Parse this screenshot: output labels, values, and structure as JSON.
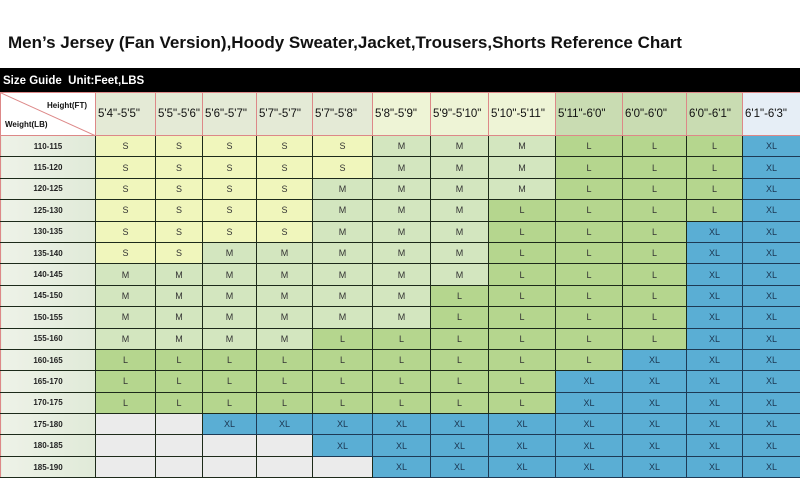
{
  "title": "Men’s Jersey (Fan Version),Hoody Sweater,Jacket,Trousers,Shorts Reference Chart",
  "guide_label": "Size Guide  Unit:Feet,LBS",
  "corner": {
    "height_label": "Height(FT)",
    "weight_label": "Weight(LB)"
  },
  "heights": [
    "5'4\"-5'5\"",
    "5'5\"-5'6\"",
    "5'6\"-5'7\"",
    "5'7\"-5'7\"",
    "5'7\"-5'8\"",
    "5'8\"-5'9\"",
    "5'9\"-5'10\"",
    "5'10\"-5'11\"",
    "5'11\"-6'0\"",
    "6'0\"-6'0\"",
    "6'0\"-6'1\"",
    "6'1\"-6'3\""
  ],
  "header_colors": [
    "#e4ead6",
    "#e4ead6",
    "#e4ead6",
    "#e4ead6",
    "#e4ead6",
    "#eef4d6",
    "#eef4d6",
    "#eef4d6",
    "#c9dcb2",
    "#c9dcb2",
    "#c9dcb2",
    "#e6eef6"
  ],
  "size_colors": {
    "S": "#f0f6bc",
    "M": "#d3e6bf",
    "L": "#b5d68e",
    "XL": "#5aaed4",
    "": "#ebebeb"
  },
  "rows": [
    {
      "weight": "110-115",
      "sizes": [
        "S",
        "S",
        "S",
        "S",
        "S",
        "M",
        "M",
        "M",
        "L",
        "L",
        "L",
        "XL"
      ]
    },
    {
      "weight": "115-120",
      "sizes": [
        "S",
        "S",
        "S",
        "S",
        "S",
        "M",
        "M",
        "M",
        "L",
        "L",
        "L",
        "XL"
      ]
    },
    {
      "weight": "120-125",
      "sizes": [
        "S",
        "S",
        "S",
        "S",
        "M",
        "M",
        "M",
        "M",
        "L",
        "L",
        "L",
        "XL"
      ]
    },
    {
      "weight": "125-130",
      "sizes": [
        "S",
        "S",
        "S",
        "S",
        "M",
        "M",
        "M",
        "L",
        "L",
        "L",
        "L",
        "XL"
      ]
    },
    {
      "weight": "130-135",
      "sizes": [
        "S",
        "S",
        "S",
        "S",
        "M",
        "M",
        "M",
        "L",
        "L",
        "L",
        "XL",
        "XL"
      ]
    },
    {
      "weight": "135-140",
      "sizes": [
        "S",
        "S",
        "M",
        "M",
        "M",
        "M",
        "M",
        "L",
        "L",
        "L",
        "XL",
        "XL"
      ]
    },
    {
      "weight": "140-145",
      "sizes": [
        "M",
        "M",
        "M",
        "M",
        "M",
        "M",
        "M",
        "L",
        "L",
        "L",
        "XL",
        "XL"
      ]
    },
    {
      "weight": "145-150",
      "sizes": [
        "M",
        "M",
        "M",
        "M",
        "M",
        "M",
        "L",
        "L",
        "L",
        "L",
        "XL",
        "XL"
      ]
    },
    {
      "weight": "150-155",
      "sizes": [
        "M",
        "M",
        "M",
        "M",
        "M",
        "M",
        "L",
        "L",
        "L",
        "L",
        "XL",
        "XL"
      ]
    },
    {
      "weight": "155-160",
      "sizes": [
        "M",
        "M",
        "M",
        "M",
        "L",
        "L",
        "L",
        "L",
        "L",
        "L",
        "XL",
        "XL"
      ]
    },
    {
      "weight": "160-165",
      "sizes": [
        "L",
        "L",
        "L",
        "L",
        "L",
        "L",
        "L",
        "L",
        "L",
        "XL",
        "XL",
        "XL"
      ]
    },
    {
      "weight": "165-170",
      "sizes": [
        "L",
        "L",
        "L",
        "L",
        "L",
        "L",
        "L",
        "L",
        "XL",
        "XL",
        "XL",
        "XL"
      ]
    },
    {
      "weight": "170-175",
      "sizes": [
        "L",
        "L",
        "L",
        "L",
        "L",
        "L",
        "L",
        "L",
        "XL",
        "XL",
        "XL",
        "XL"
      ]
    },
    {
      "weight": "175-180",
      "sizes": [
        "",
        "",
        "XL",
        "XL",
        "XL",
        "XL",
        "XL",
        "XL",
        "XL",
        "XL",
        "XL",
        "XL"
      ]
    },
    {
      "weight": "180-185",
      "sizes": [
        "",
        "",
        "",
        "",
        "XL",
        "XL",
        "XL",
        "XL",
        "XL",
        "XL",
        "XL",
        "XL"
      ]
    },
    {
      "weight": "185-190",
      "sizes": [
        "",
        "",
        "",
        "",
        "",
        "XL",
        "XL",
        "XL",
        "XL",
        "XL",
        "XL",
        "XL"
      ]
    }
  ]
}
